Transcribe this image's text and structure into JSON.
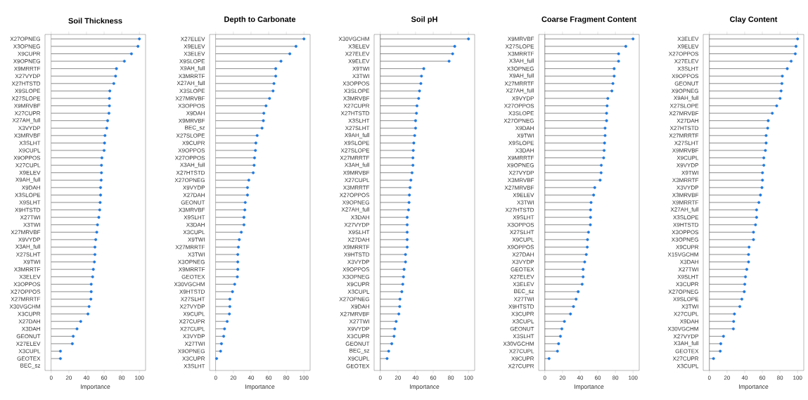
{
  "chart_data": [
    {
      "type": "lollipop",
      "orientation": "horizontal",
      "title": "Soil Thickness",
      "xlabel": "Importance",
      "color": "#1f7ae0",
      "marker": "circle",
      "xlim": [
        -7,
        107
      ],
      "xticks": [
        0,
        20,
        40,
        60,
        80,
        100
      ],
      "ref_lines": [
        {
          "axis": "x",
          "value": 0,
          "color": "#404040"
        }
      ],
      "categories": [
        "X27OPNEG",
        "X3OPNEG",
        "X9CUPR",
        "X9OPNEG",
        "X9MRRTF",
        "X27VYDP",
        "X27HTSTD",
        "X9SLOPE",
        "X27SLOPE",
        "X9MRVBF",
        "X27CUPR",
        "X27AH_full",
        "X3VYDP",
        "X3MRVBF",
        "X3SLHT",
        "X9CUPL",
        "X9OPPOS",
        "X27CUPL",
        "X9ELEV",
        "X9AH_full",
        "X9DAH",
        "X3SLOPE",
        "X9SLHT",
        "X9HTSTD",
        "X27TWI",
        "X3TWI",
        "X27MRVBF",
        "X9VYDP",
        "X3AH_full",
        "X27SLHT",
        "X9TWI",
        "X3MRRTF",
        "X3ELEV",
        "X3OPPOS",
        "X27OPPOS",
        "X27MRRTF",
        "X30VGCHM",
        "X3CUPR",
        "X27DAH",
        "X3DAH",
        "GEONUT",
        "X27ELEV",
        "X3CUPL",
        "GEOTEX",
        "BEC_sz"
      ],
      "values": [
        100,
        98.4,
        91,
        83,
        74,
        73,
        71,
        66.5,
        66,
        66,
        65.5,
        64,
        63,
        61,
        60.5,
        60,
        57.5,
        57,
        57,
        56.7,
        56,
        56,
        55.5,
        55,
        54,
        52.5,
        51.7,
        50.5,
        49.6,
        49.6,
        49,
        47.8,
        47,
        45.4,
        45.4,
        45,
        43,
        41.7,
        33.5,
        29.3,
        25,
        24,
        10.5,
        10.5,
        null
      ]
    },
    {
      "type": "lollipop",
      "orientation": "horizontal",
      "title": "Depth to Carbonate",
      "xlabel": "Importance",
      "color": "#1f7ae0",
      "marker": "circle",
      "xlim": [
        -7,
        107
      ],
      "xticks": [
        0,
        20,
        40,
        60,
        80,
        100
      ],
      "ref_lines": [
        {
          "axis": "x",
          "value": 0,
          "color": "#404040"
        }
      ],
      "categories": [
        "X27ELEV",
        "X9ELEV",
        "X3ELEV",
        "X9SLOPE",
        "X9AH_full",
        "X3MRRTF",
        "X27AH_full",
        "X3SLOPE",
        "X27MRVBF",
        "X3OPPOS",
        "X9DAH",
        "X9MRVBF",
        "BEC_sz",
        "X27SLOPE",
        "X9CUPR",
        "X9OPPOS",
        "X27OPPOS",
        "X3AH_full",
        "X27HTSTD",
        "X27OPNEG",
        "X9VYDP",
        "X27DAH",
        "GEONUT",
        "X3MRVBF",
        "X9SLHT",
        "X3DAH",
        "X3CUPL",
        "X9TWI",
        "X27MRRTF",
        "X3TWI",
        "X3OPNEG",
        "X9MRRTF",
        "GEOTEX",
        "X30VGCHM",
        "X9HTSTD",
        "X27SLHT",
        "X27VYDP",
        "X9CUPL",
        "X27CUPR",
        "X27CUPL",
        "X3VYDP",
        "X27TWI",
        "X9OPNEG",
        "X3CUPR",
        "X3SLHT"
      ],
      "values": [
        100,
        91,
        84,
        74,
        68,
        68,
        66,
        65,
        61,
        57,
        54.5,
        54,
        52.5,
        47,
        45.5,
        45,
        44,
        43.5,
        42.5,
        37.5,
        36,
        36,
        33.5,
        33,
        32,
        32,
        29,
        26.7,
        25.7,
        25,
        25,
        25,
        24.5,
        21.5,
        19,
        16,
        16,
        15.5,
        13,
        10,
        9,
        6.5,
        5.5,
        1,
        null
      ]
    },
    {
      "type": "lollipop",
      "orientation": "horizontal",
      "title": "Soil pH",
      "xlabel": "Importance",
      "color": "#1f7ae0",
      "marker": "circle",
      "xlim": [
        -7,
        107
      ],
      "xticks": [
        0,
        20,
        40,
        60,
        80,
        100
      ],
      "ref_lines": [
        {
          "axis": "x",
          "value": 0,
          "color": "#404040"
        }
      ],
      "categories": [
        "X30VGCHM",
        "X3ELEV",
        "X27ELEV",
        "X9ELEV",
        "X9TWI",
        "X3TWI",
        "X3OPPOS",
        "X3SLOPE",
        "X3MRVBF",
        "X27CUPR",
        "X27HTSTD",
        "X3SLHT",
        "X27SLHT",
        "X9AH_full",
        "X9SLOPE",
        "X27SLOPE",
        "X27MRRTF",
        "X3AH_full",
        "X9MRVBF",
        "X27CUPL",
        "X3MRRTF",
        "X27OPPOS",
        "X9OPNEG",
        "X27AH_full",
        "X3DAH",
        "X27VYDP",
        "X9SLHT",
        "X27DAH",
        "X9MRRTF",
        "X9HTSTD",
        "X3VYDP",
        "X9OPPOS",
        "X3OPNEG",
        "X9CUPR",
        "X3CUPL",
        "X27OPNEG",
        "X9DAH",
        "X27MRVBF",
        "X27TWI",
        "X9VYDP",
        "X3CUPR",
        "GEONUT",
        "BEC_sz",
        "X9CUPL",
        "GEOTEX"
      ],
      "values": [
        100,
        84.4,
        82,
        78,
        49.3,
        46.7,
        46,
        44.5,
        43.5,
        41.6,
        41,
        40,
        40,
        39,
        38,
        37.4,
        37,
        37,
        36,
        34.7,
        33.7,
        33,
        32.6,
        32,
        30.5,
        30.5,
        30.5,
        30.5,
        30.5,
        28.6,
        28.6,
        27,
        26.3,
        25.5,
        24.4,
        22.3,
        22,
        21,
        18,
        16.4,
        15.6,
        13,
        9.5,
        7.7,
        null
      ]
    },
    {
      "type": "lollipop",
      "orientation": "horizontal",
      "title": "Coarse Fragment Content",
      "xlabel": "Importance",
      "color": "#1f7ae0",
      "marker": "circle",
      "xlim": [
        -7,
        107
      ],
      "xticks": [
        0,
        20,
        40,
        60,
        80,
        100
      ],
      "ref_lines": [
        {
          "axis": "x",
          "value": 0,
          "color": "#404040"
        }
      ],
      "categories": [
        "X9MRVBF",
        "X27SLOPE",
        "X3MRRTF",
        "X3AH_full",
        "X3OPNEG",
        "X9AH_full",
        "X27MRRTF",
        "X27AH_full",
        "X9VYDP",
        "X27OPPOS",
        "X3SLOPE",
        "X27OPNEG",
        "X9DAH",
        "X9TWI",
        "X9SLOPE",
        "X3DAH",
        "X9MRRTF",
        "X9OPNEG",
        "X27VYDP",
        "X3MRVBF",
        "X27MRVBF",
        "X9ELEV",
        "X3TWI",
        "X27HTSTD",
        "X9SLHT",
        "X3OPPOS",
        "X27SLHT",
        "X9CUPL",
        "X9OPPOS",
        "X27DAH",
        "X3VYDP",
        "GEOTEX",
        "X27ELEV",
        "X3ELEV",
        "BEC_sz",
        "X27TWI",
        "X9HTSTD",
        "X3CUPR",
        "X3CUPL",
        "GEONUT",
        "X3SLHT",
        "X30VGCHM",
        "X27CUPL",
        "X9CUPR",
        "X27CUPR"
      ],
      "values": [
        100,
        91.8,
        83.6,
        83.6,
        78.6,
        78.6,
        77.2,
        76,
        71.4,
        70.6,
        70,
        70,
        68.3,
        68.3,
        67.7,
        67.2,
        66.7,
        64,
        63.8,
        62.7,
        56.6,
        55.3,
        52.4,
        51.8,
        51.8,
        51.6,
        49.5,
        48.4,
        48.1,
        47,
        45.2,
        43.4,
        43.4,
        42.3,
        37.8,
        35.4,
        32.5,
        29.1,
        22.2,
        19.3,
        17.7,
        15.6,
        14.3,
        4.8,
        null
      ]
    },
    {
      "type": "lollipop",
      "orientation": "horizontal",
      "title": "Clay Content",
      "xlabel": "Importance",
      "color": "#1f7ae0",
      "marker": "circle",
      "xlim": [
        -7,
        107
      ],
      "xticks": [
        0,
        20,
        40,
        60,
        80,
        100
      ],
      "ref_lines": [
        {
          "axis": "x",
          "value": 0,
          "color": "#404040"
        }
      ],
      "categories": [
        "X3ELEV",
        "X9ELEV",
        "X27OPPOS",
        "X27ELEV",
        "X3SLHT",
        "X9OPPOS",
        "GEONUT",
        "X9OPNEG",
        "X9AH_full",
        "X27SLOPE",
        "X27MRVBF",
        "X27DAH",
        "X27HTSTD",
        "X27MRRTF",
        "X27SLHT",
        "X9MRVBF",
        "X9CUPL",
        "X9VYDP",
        "X9TWI",
        "X3MRRTF",
        "X3VYDP",
        "X3MRVBF",
        "X9MRRTF",
        "X27AH_full",
        "X3SLOPE",
        "X9HTSTD",
        "X3OPPOS",
        "X3OPNEG",
        "X9CUPR",
        "X15VGCHM",
        "X3DAH",
        "X27TWI",
        "X9SLHT",
        "X3CUPR",
        "X27OPNEG",
        "X9SLOPE",
        "X3TWI",
        "X27CUPL",
        "X9DAH",
        "X30VGCHM",
        "X27VYDP",
        "X3AH_full",
        "GEOTEX",
        "X27CUPR",
        "X3CUPL"
      ],
      "values": [
        100,
        98.2,
        97.4,
        92.7,
        88.3,
        82.7,
        82.2,
        81.3,
        80.1,
        76.3,
        71.3,
        66.7,
        66.1,
        64.3,
        64.3,
        63.5,
        61.7,
        61.7,
        60.2,
        60.2,
        59.6,
        57.9,
        56.1,
        53.5,
        53.5,
        52.3,
        50,
        50,
        45,
        44.4,
        44.4,
        42.4,
        40.9,
        40.1,
        39.5,
        36.8,
        34.5,
        28.4,
        27.5,
        27.2,
        16,
        12.9,
        12.3,
        4.7,
        null
      ]
    }
  ]
}
